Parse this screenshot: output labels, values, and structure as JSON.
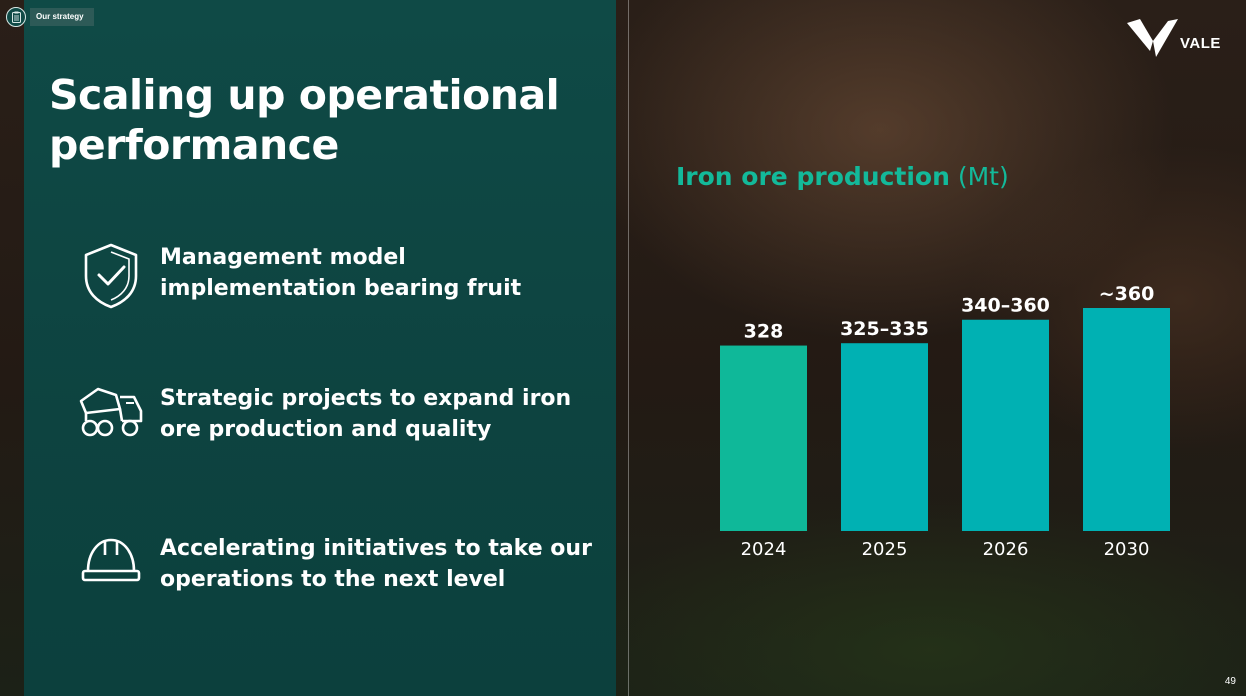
{
  "header": {
    "section_badge": "Our strategy"
  },
  "title": "Scaling up operational performance",
  "points": [
    {
      "icon": "shield-check-icon",
      "text": "Management model implementation bearing fruit"
    },
    {
      "icon": "mining-truck-icon",
      "text": "Strategic projects to expand iron ore production and quality"
    },
    {
      "icon": "hard-hat-icon",
      "text": "Accelerating initiatives to take our operations to the next level"
    }
  ],
  "brand": {
    "logo_text": "VALE"
  },
  "chart_title": {
    "main": "Iron ore production",
    "unit": "(Mt)"
  },
  "colors": {
    "panel": "#0f4a46",
    "accent_green": "#13b99a",
    "bar_2024": "#0fb899",
    "bar_forecast": "#00b1b3"
  },
  "chart_data": {
    "type": "bar",
    "title": "Iron ore production (Mt)",
    "categories": [
      "2024",
      "2025",
      "2026",
      "2030"
    ],
    "values": [
      328,
      330,
      350,
      360
    ],
    "data_labels": [
      "328",
      "325–335",
      "340–360",
      "~360"
    ],
    "ylim": [
      0,
      360
    ],
    "xlabel": "",
    "ylabel": "",
    "grid": false
  },
  "page_number": "49"
}
